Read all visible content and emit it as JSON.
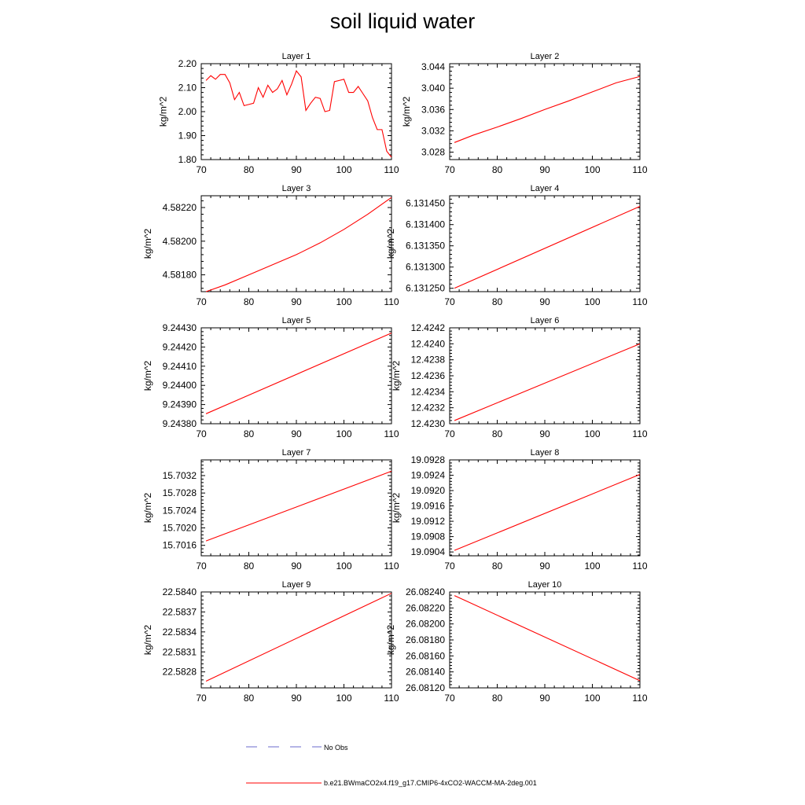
{
  "title": "soil liquid water",
  "legend": {
    "entries": [
      {
        "label": "No Obs",
        "color": "#6a6acd",
        "dash": "dashed"
      },
      {
        "label": "b.e21.BWmaCO2x4.f19_g17.CMIP6-4xCO2-WACCM-MA-2deg.001",
        "color": "#ff0000",
        "dash": "solid"
      }
    ]
  },
  "chart_data": [
    {
      "type": "line",
      "title": "Layer 1",
      "ylabel": "kg/m^2",
      "xlim": [
        70,
        110
      ],
      "ylim": [
        1.8,
        2.2
      ],
      "xticks": [
        "70",
        "80",
        "90",
        "100",
        "110"
      ],
      "yticks": [
        "1.80",
        "1.90",
        "2.00",
        "2.10",
        "2.20"
      ],
      "series": [
        {
          "color": "#ff0000",
          "x": [
            71,
            72,
            73,
            74,
            75,
            76,
            77,
            78,
            79,
            80,
            81,
            82,
            83,
            84,
            85,
            86,
            87,
            88,
            89,
            90,
            91,
            92,
            93,
            94,
            95,
            96,
            97,
            98,
            99,
            100,
            101,
            102,
            103,
            104,
            105,
            106,
            107,
            108,
            109,
            110
          ],
          "y": [
            2.13,
            2.15,
            2.135,
            2.155,
            2.155,
            2.12,
            2.05,
            2.08,
            2.025,
            2.03,
            2.035,
            2.1,
            2.06,
            2.11,
            2.08,
            2.095,
            2.13,
            2.07,
            2.115,
            2.17,
            2.145,
            2.005,
            2.035,
            2.06,
            2.055,
            2.0,
            2.005,
            2.125,
            2.13,
            2.135,
            2.08,
            2.08,
            2.105,
            2.075,
            2.045,
            1.975,
            1.925,
            1.925,
            1.835,
            1.81
          ]
        }
      ]
    },
    {
      "type": "line",
      "title": "Layer 2",
      "ylabel": "kg/m^2",
      "xlim": [
        70,
        110
      ],
      "ylim": [
        3.0266,
        3.0446
      ],
      "xticks": [
        "70",
        "80",
        "90",
        "100",
        "110"
      ],
      "yticks": [
        "3.028",
        "3.032",
        "3.036",
        "3.040",
        "3.044"
      ],
      "series": [
        {
          "color": "#ff0000",
          "x": [
            71,
            75,
            80,
            85,
            90,
            95,
            100,
            105,
            110
          ],
          "y": [
            3.0298,
            3.0312,
            3.0327,
            3.0343,
            3.036,
            3.0376,
            3.0393,
            3.041,
            3.0422
          ]
        }
      ]
    },
    {
      "type": "line",
      "title": "Layer 3",
      "ylabel": "kg/m^2",
      "xlim": [
        70,
        110
      ],
      "ylim": [
        4.5817,
        4.58227
      ],
      "xticks": [
        "70",
        "80",
        "90",
        "100",
        "110"
      ],
      "yticks": [
        "4.58180",
        "4.58200",
        "4.58220"
      ],
      "series": [
        {
          "color": "#ff0000",
          "x": [
            71,
            75,
            80,
            85,
            90,
            95,
            100,
            105,
            110
          ],
          "y": [
            4.5817,
            4.58174,
            4.5818,
            4.58186,
            4.58192,
            4.58199,
            4.58207,
            4.58216,
            4.58226
          ]
        }
      ]
    },
    {
      "type": "line",
      "title": "Layer 4",
      "ylabel": "kg/m^2",
      "xlim": [
        70,
        110
      ],
      "ylim": [
        6.131242,
        6.131468
      ],
      "xticks": [
        "70",
        "80",
        "90",
        "100",
        "110"
      ],
      "yticks": [
        "6.131250",
        "6.131300",
        "6.131350",
        "6.131400",
        "6.131450"
      ],
      "series": [
        {
          "color": "#ff0000",
          "x": [
            71,
            110
          ],
          "y": [
            6.13125,
            6.131443
          ]
        }
      ]
    },
    {
      "type": "line",
      "title": "Layer 5",
      "ylabel": "kg/m^2",
      "xlim": [
        70,
        110
      ],
      "ylim": [
        9.2438,
        9.2443
      ],
      "xticks": [
        "70",
        "80",
        "90",
        "100",
        "110"
      ],
      "yticks": [
        "9.24380",
        "9.24390",
        "9.24400",
        "9.24410",
        "9.24420",
        "9.24430"
      ],
      "series": [
        {
          "color": "#ff0000",
          "x": [
            71,
            110
          ],
          "y": [
            9.243852,
            9.244273
          ]
        }
      ]
    },
    {
      "type": "line",
      "title": "Layer 6",
      "ylabel": "kg/m^2",
      "xlim": [
        70,
        110
      ],
      "ylim": [
        12.423,
        12.4242
      ],
      "xticks": [
        "70",
        "80",
        "90",
        "100",
        "110"
      ],
      "yticks": [
        "12.4230",
        "12.4232",
        "12.4234",
        "12.4236",
        "12.4238",
        "12.4240",
        "12.4242"
      ],
      "series": [
        {
          "color": "#ff0000",
          "x": [
            71,
            110
          ],
          "y": [
            12.42304,
            12.424
          ]
        }
      ]
    },
    {
      "type": "line",
      "title": "Layer 7",
      "ylabel": "kg/m^2",
      "xlim": [
        70,
        110
      ],
      "ylim": [
        15.70136,
        15.70356
      ],
      "xticks": [
        "70",
        "80",
        "90",
        "100",
        "110"
      ],
      "yticks": [
        "15.7016",
        "15.7020",
        "15.7024",
        "15.7028",
        "15.7032"
      ],
      "series": [
        {
          "color": "#ff0000",
          "x": [
            71,
            110
          ],
          "y": [
            15.7017,
            15.7033
          ]
        }
      ]
    },
    {
      "type": "line",
      "title": "Layer 8",
      "ylabel": "kg/m^2",
      "xlim": [
        70,
        110
      ],
      "ylim": [
        19.0903,
        19.0928
      ],
      "xticks": [
        "70",
        "80",
        "90",
        "100",
        "110"
      ],
      "yticks": [
        "19.0904",
        "19.0908",
        "19.0912",
        "19.0916",
        "19.0920",
        "19.0924",
        "19.0928"
      ],
      "series": [
        {
          "color": "#ff0000",
          "x": [
            71,
            110
          ],
          "y": [
            19.09044,
            19.09242
          ]
        }
      ]
    },
    {
      "type": "line",
      "title": "Layer 9",
      "ylabel": "kg/m^2",
      "xlim": [
        70,
        110
      ],
      "ylim": [
        22.58256,
        22.584
      ],
      "xticks": [
        "70",
        "80",
        "90",
        "100",
        "110"
      ],
      "yticks": [
        "22.5828",
        "22.5831",
        "22.5834",
        "22.5837",
        "22.5840"
      ],
      "series": [
        {
          "color": "#ff0000",
          "x": [
            71,
            110
          ],
          "y": [
            22.58266,
            22.58398
          ]
        }
      ]
    },
    {
      "type": "line",
      "title": "Layer 10",
      "ylabel": "kg/m^2",
      "xlim": [
        70,
        110
      ],
      "ylim": [
        26.0812,
        26.0824
      ],
      "xticks": [
        "70",
        "80",
        "90",
        "100",
        "110"
      ],
      "yticks": [
        "26.08120",
        "26.08140",
        "26.08160",
        "26.08180",
        "26.08200",
        "26.08220",
        "26.08240"
      ],
      "series": [
        {
          "color": "#ff0000",
          "x": [
            71,
            110
          ],
          "y": [
            26.082355,
            26.08129
          ]
        }
      ]
    }
  ]
}
